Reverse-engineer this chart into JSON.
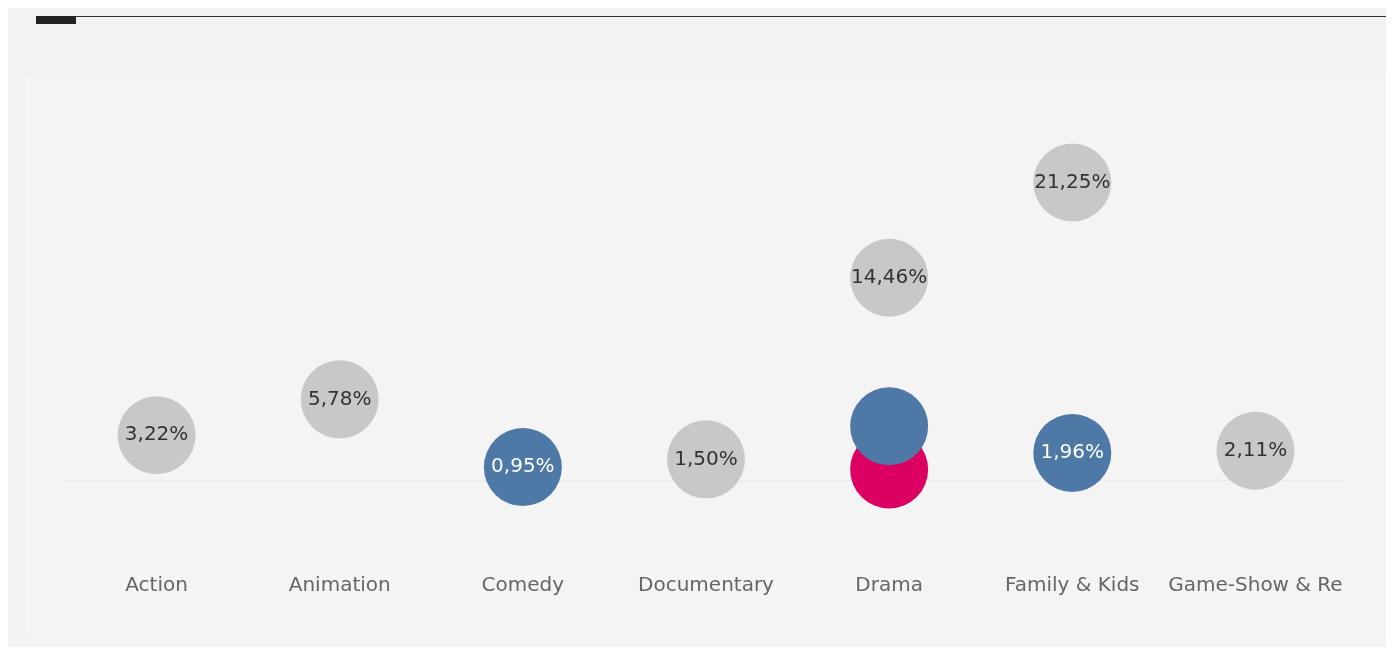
{
  "chart_data": {
    "type": "scatter",
    "categories": [
      "Action",
      "Animation",
      "Comedy",
      "Documentary",
      "Drama",
      "Family & Kids",
      "Game-Show & Re"
    ],
    "series": [
      {
        "color": "#c8c8c8",
        "values": [
          3.22,
          5.78,
          null,
          1.5,
          14.46,
          21.25,
          2.11
        ],
        "value_labels": [
          "3,22%",
          "5,78%",
          null,
          "1,50%",
          "14,46%",
          "21,25%",
          "2,11%"
        ]
      },
      {
        "color": "#4e79a7",
        "values": [
          null,
          null,
          0.95,
          null,
          3.86,
          1.96,
          null
        ],
        "value_labels": [
          null,
          null,
          "0,95%",
          null,
          null,
          "1,96%",
          null
        ]
      },
      {
        "color": "#dc0063",
        "values": [
          null,
          null,
          null,
          null,
          0.78,
          null,
          null
        ],
        "value_labels": [
          null,
          null,
          null,
          null,
          null,
          null,
          null
        ]
      }
    ],
    "ref_lines": [
      {
        "axis": "y",
        "value": 0,
        "color": "#d0d0d0",
        "line_style": "dotted"
      }
    ],
    "marker": "circle",
    "grid": false,
    "legend": false,
    "tick_labels": "x"
  }
}
